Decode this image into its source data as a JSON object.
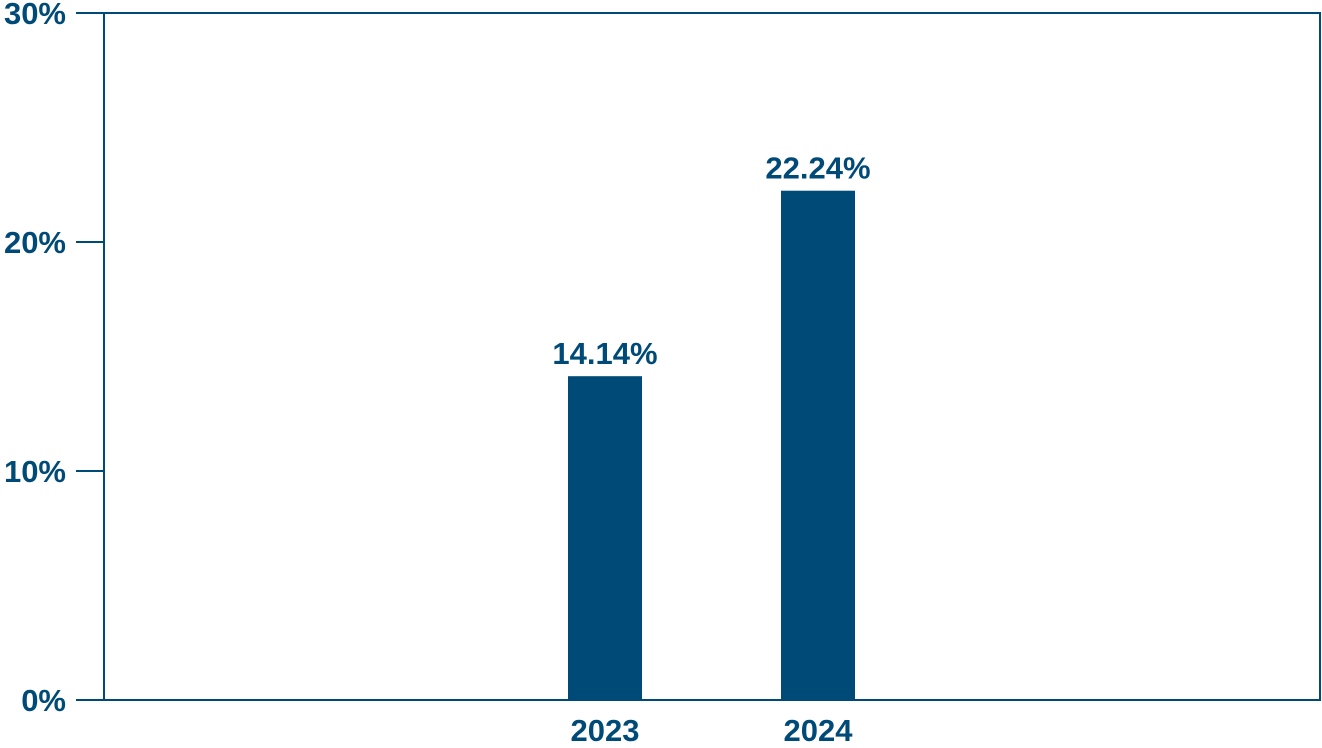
{
  "chart_data": {
    "type": "bar",
    "categories": [
      "2023",
      "2024"
    ],
    "values": [
      14.14,
      22.24
    ],
    "value_labels": [
      "14.14%",
      "22.24%"
    ],
    "y_ticks": [
      {
        "value": 0,
        "label": "0%"
      },
      {
        "value": 10,
        "label": "10%"
      },
      {
        "value": 20,
        "label": "20%"
      },
      {
        "value": 30,
        "label": "30%"
      }
    ],
    "ylim": [
      0,
      30
    ],
    "grid": false,
    "legend": "none",
    "colors": {
      "bar": "#004a78",
      "axis": "#004a78",
      "text": "#004a78"
    }
  }
}
